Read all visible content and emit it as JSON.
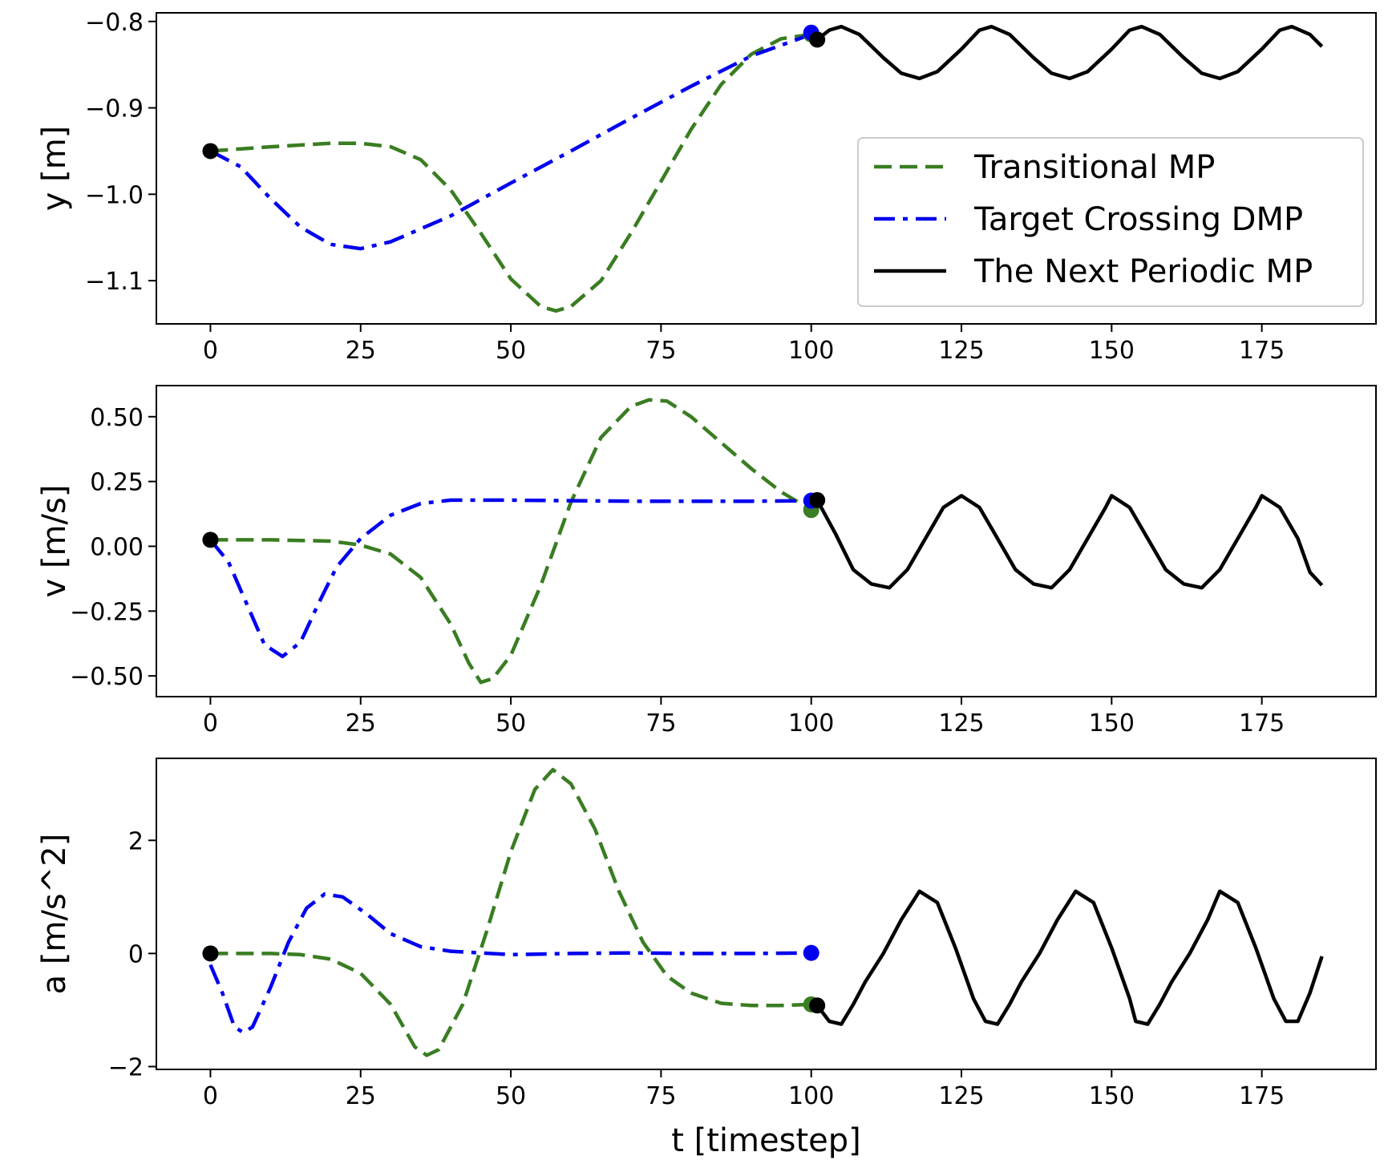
{
  "chart_data": [
    {
      "type": "line",
      "ylabel": "y [m]",
      "xlabel": "",
      "xlim": [
        -9,
        194
      ],
      "ylim": [
        -1.15,
        -0.79
      ],
      "x_ticks": [
        0,
        25,
        50,
        75,
        100,
        125,
        150,
        175
      ],
      "y_ticks": [
        -0.8,
        -0.9,
        -1.0,
        -1.1
      ],
      "y_tick_labels": [
        "−0.8",
        "−0.9",
        "−1.0",
        "−1.1"
      ],
      "legend": {
        "placement": "center-right",
        "entries": [
          "Transitional MP",
          "Target Crossing DMP",
          "The Next Periodic MP"
        ]
      },
      "series": [
        {
          "name": "Transitional MP",
          "color": "#3a7d22",
          "style": "dashed",
          "points": [
            [
              0,
              -0.95
            ],
            [
              10,
              -0.945
            ],
            [
              20,
              -0.941
            ],
            [
              25,
              -0.941
            ],
            [
              30,
              -0.945
            ],
            [
              35,
              -0.96
            ],
            [
              40,
              -0.995
            ],
            [
              45,
              -1.045
            ],
            [
              50,
              -1.098
            ],
            [
              55,
              -1.13
            ],
            [
              57.5,
              -1.135
            ],
            [
              60,
              -1.13
            ],
            [
              65,
              -1.1
            ],
            [
              70,
              -1.045
            ],
            [
              75,
              -0.985
            ],
            [
              80,
              -0.925
            ],
            [
              85,
              -0.873
            ],
            [
              90,
              -0.838
            ],
            [
              95,
              -0.82
            ],
            [
              100,
              -0.815
            ]
          ]
        },
        {
          "name": "Target Crossing DMP",
          "color": "#0000ee",
          "style": "dashdot",
          "points": [
            [
              0,
              -0.95
            ],
            [
              5,
              -0.968
            ],
            [
              10,
              -1.005
            ],
            [
              15,
              -1.038
            ],
            [
              20,
              -1.058
            ],
            [
              25,
              -1.063
            ],
            [
              30,
              -1.055
            ],
            [
              40,
              -1.025
            ],
            [
              50,
              -0.987
            ],
            [
              60,
              -0.95
            ],
            [
              70,
              -0.912
            ],
            [
              80,
              -0.875
            ],
            [
              90,
              -0.84
            ],
            [
              100,
              -0.815
            ]
          ]
        },
        {
          "name": "The Next Periodic MP",
          "color": "#000000",
          "style": "solid",
          "points": [
            [
              101,
              -0.821
            ],
            [
              103,
              -0.81
            ],
            [
              105,
              -0.806
            ],
            [
              108,
              -0.815
            ],
            [
              112,
              -0.842
            ],
            [
              115,
              -0.86
            ],
            [
              118,
              -0.866
            ],
            [
              121,
              -0.858
            ],
            [
              125,
              -0.832
            ],
            [
              128,
              -0.81
            ],
            [
              130,
              -0.806
            ],
            [
              133,
              -0.815
            ],
            [
              137,
              -0.842
            ],
            [
              140,
              -0.86
            ],
            [
              143,
              -0.866
            ],
            [
              146,
              -0.858
            ],
            [
              150,
              -0.832
            ],
            [
              153,
              -0.81
            ],
            [
              155,
              -0.806
            ],
            [
              158,
              -0.815
            ],
            [
              162,
              -0.842
            ],
            [
              165,
              -0.86
            ],
            [
              168,
              -0.866
            ],
            [
              171,
              -0.858
            ],
            [
              175,
              -0.832
            ],
            [
              178,
              -0.81
            ],
            [
              180,
              -0.806
            ],
            [
              183,
              -0.815
            ],
            [
              185,
              -0.829
            ]
          ]
        }
      ],
      "markers": [
        {
          "x": 0,
          "y": -0.95,
          "color": "#000000"
        },
        {
          "x": 100,
          "y": -0.815,
          "color": "#3a7d22"
        },
        {
          "x": 100,
          "y": -0.813,
          "color": "#0000ee"
        },
        {
          "x": 101,
          "y": -0.821,
          "color": "#000000"
        }
      ]
    },
    {
      "type": "line",
      "ylabel": "v [m/s]",
      "xlabel": "",
      "xlim": [
        -9,
        194
      ],
      "ylim": [
        -0.58,
        0.62
      ],
      "x_ticks": [
        0,
        25,
        50,
        75,
        100,
        125,
        150,
        175
      ],
      "y_ticks": [
        0.5,
        0.25,
        0.0,
        -0.25,
        -0.5
      ],
      "y_tick_labels": [
        "0.50",
        "0.25",
        "0.00",
        "−0.25",
        "−0.50"
      ],
      "series": [
        {
          "name": "Transitional MP",
          "color": "#3a7d22",
          "style": "dashed",
          "points": [
            [
              0,
              0.025
            ],
            [
              10,
              0.025
            ],
            [
              20,
              0.02
            ],
            [
              25,
              0.005
            ],
            [
              30,
              -0.03
            ],
            [
              35,
              -0.12
            ],
            [
              40,
              -0.3
            ],
            [
              43,
              -0.45
            ],
            [
              45,
              -0.525
            ],
            [
              47,
              -0.51
            ],
            [
              50,
              -0.42
            ],
            [
              55,
              -0.15
            ],
            [
              60,
              0.17
            ],
            [
              65,
              0.42
            ],
            [
              70,
              0.54
            ],
            [
              73,
              0.565
            ],
            [
              76,
              0.56
            ],
            [
              80,
              0.5
            ],
            [
              85,
              0.4
            ],
            [
              90,
              0.3
            ],
            [
              95,
              0.21
            ],
            [
              100,
              0.14
            ]
          ]
        },
        {
          "name": "Target Crossing DMP",
          "color": "#0000ee",
          "style": "dashdot",
          "points": [
            [
              0,
              0.025
            ],
            [
              3,
              -0.06
            ],
            [
              6,
              -0.22
            ],
            [
              9,
              -0.38
            ],
            [
              12,
              -0.425
            ],
            [
              15,
              -0.37
            ],
            [
              18,
              -0.22
            ],
            [
              21,
              -0.08
            ],
            [
              25,
              0.03
            ],
            [
              30,
              0.12
            ],
            [
              35,
              0.165
            ],
            [
              40,
              0.178
            ],
            [
              50,
              0.178
            ],
            [
              60,
              0.176
            ],
            [
              70,
              0.174
            ],
            [
              80,
              0.174
            ],
            [
              90,
              0.174
            ],
            [
              100,
              0.176
            ]
          ]
        },
        {
          "name": "The Next Periodic MP",
          "color": "#000000",
          "style": "solid",
          "points": [
            [
              101,
              0.178
            ],
            [
              104,
              0.05
            ],
            [
              107,
              -0.09
            ],
            [
              110,
              -0.145
            ],
            [
              113,
              -0.16
            ],
            [
              116,
              -0.09
            ],
            [
              119,
              0.03
            ],
            [
              122,
              0.15
            ],
            [
              125,
              0.195
            ],
            [
              128,
              0.15
            ],
            [
              131,
              0.03
            ],
            [
              134,
              -0.09
            ],
            [
              137,
              -0.145
            ],
            [
              140,
              -0.16
            ],
            [
              143,
              -0.09
            ],
            [
              146,
              0.03
            ],
            [
              149,
              0.15
            ],
            [
              150,
              0.195
            ],
            [
              153,
              0.15
            ],
            [
              156,
              0.03
            ],
            [
              159,
              -0.09
            ],
            [
              162,
              -0.145
            ],
            [
              165,
              -0.16
            ],
            [
              168,
              -0.09
            ],
            [
              171,
              0.03
            ],
            [
              174,
              0.15
            ],
            [
              175,
              0.195
            ],
            [
              178,
              0.15
            ],
            [
              181,
              0.03
            ],
            [
              183,
              -0.1
            ],
            [
              185,
              -0.15
            ]
          ]
        }
      ],
      "markers": [
        {
          "x": 0,
          "y": 0.025,
          "color": "#000000"
        },
        {
          "x": 100,
          "y": 0.14,
          "color": "#3a7d22"
        },
        {
          "x": 100,
          "y": 0.176,
          "color": "#0000ee"
        },
        {
          "x": 101,
          "y": 0.178,
          "color": "#000000"
        }
      ]
    },
    {
      "type": "line",
      "ylabel": "a [m/s^2]",
      "xlabel": "t [timestep]",
      "xlim": [
        -9,
        194
      ],
      "ylim": [
        -2.05,
        3.45
      ],
      "x_ticks": [
        0,
        25,
        50,
        75,
        100,
        125,
        150,
        175
      ],
      "y_ticks": [
        2,
        0,
        -2
      ],
      "y_tick_labels": [
        "2",
        "0",
        "−2"
      ],
      "series": [
        {
          "name": "Transitional MP",
          "color": "#3a7d22",
          "style": "dashed",
          "points": [
            [
              0,
              0.0
            ],
            [
              10,
              0.0
            ],
            [
              15,
              -0.02
            ],
            [
              20,
              -0.1
            ],
            [
              25,
              -0.35
            ],
            [
              30,
              -0.9
            ],
            [
              34,
              -1.65
            ],
            [
              36,
              -1.8
            ],
            [
              38,
              -1.7
            ],
            [
              42,
              -0.9
            ],
            [
              46,
              0.4
            ],
            [
              50,
              1.8
            ],
            [
              54,
              2.9
            ],
            [
              57,
              3.25
            ],
            [
              60,
              3.0
            ],
            [
              64,
              2.2
            ],
            [
              68,
              1.1
            ],
            [
              72,
              0.2
            ],
            [
              76,
              -0.4
            ],
            [
              80,
              -0.7
            ],
            [
              85,
              -0.88
            ],
            [
              90,
              -0.92
            ],
            [
              95,
              -0.92
            ],
            [
              100,
              -0.9
            ]
          ]
        },
        {
          "name": "Target Crossing DMP",
          "color": "#0000ee",
          "style": "dashdot",
          "points": [
            [
              0,
              -0.2
            ],
            [
              2,
              -0.7
            ],
            [
              4,
              -1.3
            ],
            [
              5.5,
              -1.4
            ],
            [
              7,
              -1.3
            ],
            [
              10,
              -0.6
            ],
            [
              13,
              0.2
            ],
            [
              16,
              0.8
            ],
            [
              19,
              1.05
            ],
            [
              22,
              1.0
            ],
            [
              26,
              0.7
            ],
            [
              30,
              0.35
            ],
            [
              35,
              0.12
            ],
            [
              40,
              0.04
            ],
            [
              50,
              -0.02
            ],
            [
              60,
              0.0
            ],
            [
              70,
              0.01
            ],
            [
              80,
              0.0
            ],
            [
              90,
              0.0
            ],
            [
              100,
              0.01
            ]
          ]
        },
        {
          "name": "The Next Periodic MP",
          "color": "#000000",
          "style": "solid",
          "points": [
            [
              101,
              -0.92
            ],
            [
              103,
              -1.2
            ],
            [
              105,
              -1.25
            ],
            [
              107,
              -0.9
            ],
            [
              109,
              -0.5
            ],
            [
              112,
              0.0
            ],
            [
              115,
              0.6
            ],
            [
              118,
              1.1
            ],
            [
              121,
              0.9
            ],
            [
              124,
              0.1
            ],
            [
              127,
              -0.8
            ],
            [
              129,
              -1.2
            ],
            [
              131,
              -1.25
            ],
            [
              133,
              -0.9
            ],
            [
              135,
              -0.5
            ],
            [
              138,
              0.0
            ],
            [
              141,
              0.6
            ],
            [
              144,
              1.1
            ],
            [
              147,
              0.9
            ],
            [
              150,
              0.1
            ],
            [
              153,
              -0.8
            ],
            [
              154,
              -1.2
            ],
            [
              156,
              -1.25
            ],
            [
              158,
              -0.9
            ],
            [
              160,
              -0.5
            ],
            [
              163,
              0.0
            ],
            [
              166,
              0.6
            ],
            [
              168,
              1.1
            ],
            [
              171,
              0.9
            ],
            [
              174,
              0.1
            ],
            [
              177,
              -0.8
            ],
            [
              179,
              -1.2
            ],
            [
              181,
              -1.2
            ],
            [
              183,
              -0.7
            ],
            [
              185,
              -0.05
            ]
          ]
        }
      ],
      "markers": [
        {
          "x": 0,
          "y": 0.0,
          "color": "#000000"
        },
        {
          "x": 100,
          "y": -0.9,
          "color": "#3a7d22"
        },
        {
          "x": 100,
          "y": 0.01,
          "color": "#0000ee"
        },
        {
          "x": 101,
          "y": -0.92,
          "color": "#000000"
        }
      ]
    }
  ]
}
